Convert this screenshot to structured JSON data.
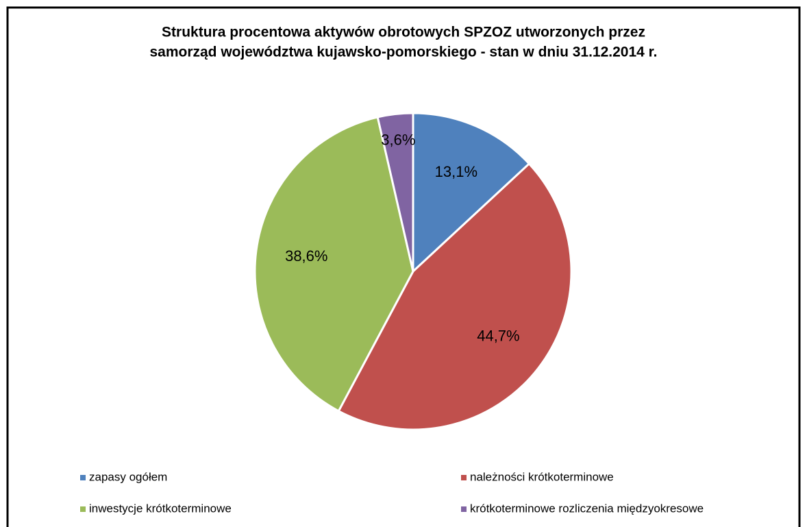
{
  "chart_data": {
    "type": "pie",
    "title": [
      "Struktura procentowa aktywów obrotowych SPZOZ utworzonych przez",
      "samorząd województwa kujawsko-pomorskiego - stan w dniu 31.12.2014 r."
    ],
    "categories": [
      "zapasy ogółem",
      "należności krótkoterminowe",
      "inwestycje krótkoterminowe",
      "krótkoterminowe rozliczenia międzyokresowe"
    ],
    "values": [
      13.1,
      44.7,
      38.6,
      3.6
    ],
    "value_labels": [
      "13,1%",
      "44,7%",
      "38,6%",
      "3,6%"
    ],
    "colors": [
      "#4f81bd",
      "#c0504d",
      "#9bbb59",
      "#8064a2"
    ],
    "legend": "bottom"
  }
}
